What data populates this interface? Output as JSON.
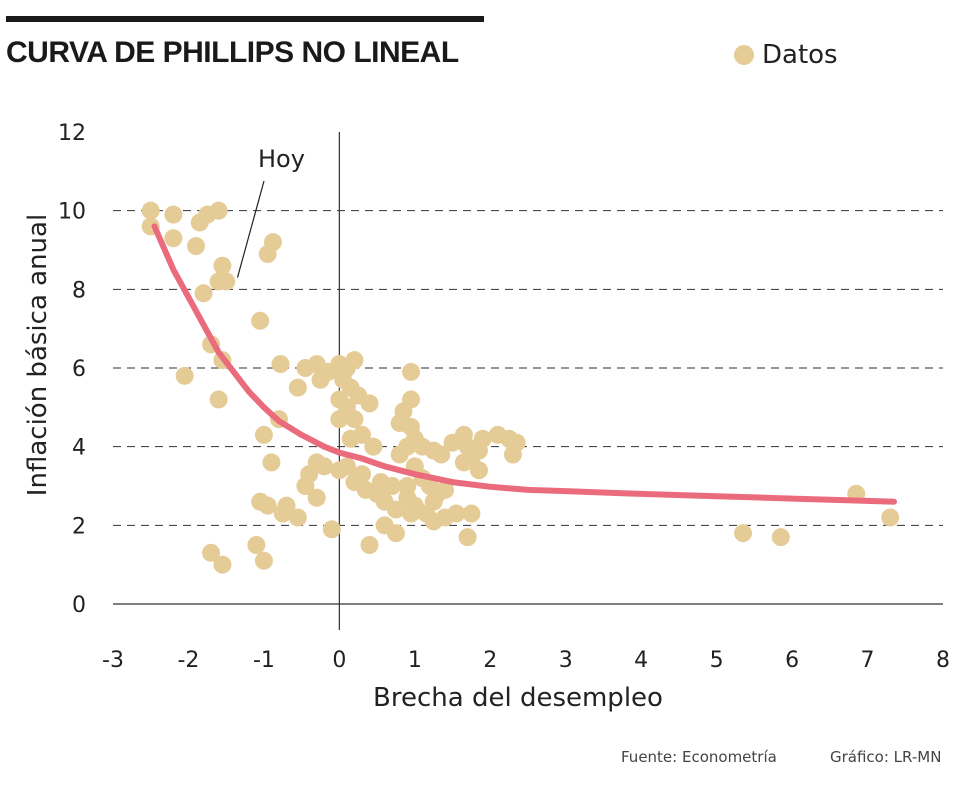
{
  "header": {
    "title": "CURVA DE PHILLIPS NO LINEAL"
  },
  "legend": {
    "label": "Datos"
  },
  "footer": {
    "source": "Fuente: Econometría",
    "credit": "Gráfico: LR-MN"
  },
  "colors": {
    "points": "#e5cc97",
    "curve": "#ea6b7c",
    "grid": "#333333"
  },
  "chart_data": {
    "type": "scatter",
    "xlabel": "Brecha del desempleo",
    "ylabel": "Inflación básica anual",
    "xlim": [
      -3,
      8
    ],
    "ylim": [
      0,
      12
    ],
    "xticks": [
      "-3",
      "-2",
      "-1",
      "0",
      "1",
      "2",
      "3",
      "4",
      "5",
      "6",
      "7",
      "8"
    ],
    "yticks": [
      "0",
      "2",
      "4",
      "6",
      "8",
      "10",
      "12"
    ],
    "grid": "horizontal dashed",
    "legend_position": "top-right",
    "annotation": {
      "text": "Hoy",
      "x": -1.35,
      "y": 8.3
    },
    "series": [
      {
        "name": "Datos",
        "kind": "points",
        "points": [
          [
            -2.5,
            9.6
          ],
          [
            -2.5,
            10.0
          ],
          [
            -2.2,
            9.9
          ],
          [
            -2.2,
            9.3
          ],
          [
            -1.9,
            9.1
          ],
          [
            -1.85,
            9.7
          ],
          [
            -1.75,
            9.9
          ],
          [
            -1.6,
            10.0
          ],
          [
            -1.8,
            7.9
          ],
          [
            -1.55,
            8.6
          ],
          [
            -1.6,
            8.2
          ],
          [
            -1.5,
            8.2
          ],
          [
            -0.95,
            8.9
          ],
          [
            -0.88,
            9.2
          ],
          [
            -1.05,
            7.2
          ],
          [
            -1.7,
            6.6
          ],
          [
            -1.55,
            6.2
          ],
          [
            -2.05,
            5.8
          ],
          [
            -1.6,
            5.2
          ],
          [
            -0.8,
            4.7
          ],
          [
            -0.78,
            6.1
          ],
          [
            -0.55,
            5.5
          ],
          [
            -0.45,
            6.0
          ],
          [
            -0.3,
            6.1
          ],
          [
            -0.25,
            5.7
          ],
          [
            -0.15,
            5.9
          ],
          [
            -1.0,
            4.3
          ],
          [
            -0.9,
            3.6
          ],
          [
            -0.3,
            3.6
          ],
          [
            -0.2,
            3.5
          ],
          [
            -0.4,
            3.3
          ],
          [
            -0.45,
            3.0
          ],
          [
            -0.3,
            2.7
          ],
          [
            -1.05,
            2.6
          ],
          [
            -0.95,
            2.5
          ],
          [
            -0.7,
            2.5
          ],
          [
            -0.75,
            2.3
          ],
          [
            -0.55,
            2.2
          ],
          [
            -0.1,
            1.9
          ],
          [
            -1.1,
            1.5
          ],
          [
            -1.0,
            1.1
          ],
          [
            -1.7,
            1.3
          ],
          [
            -1.55,
            1.0
          ],
          [
            0.0,
            6.1
          ],
          [
            0.1,
            6.0
          ],
          [
            0.2,
            6.2
          ],
          [
            0.05,
            5.7
          ],
          [
            0.15,
            5.5
          ],
          [
            0.25,
            5.3
          ],
          [
            0.0,
            5.2
          ],
          [
            0.1,
            5.0
          ],
          [
            0.4,
            5.1
          ],
          [
            0.0,
            4.7
          ],
          [
            0.2,
            4.7
          ],
          [
            0.3,
            4.3
          ],
          [
            0.15,
            4.2
          ],
          [
            0.45,
            4.0
          ],
          [
            0.0,
            3.4
          ],
          [
            0.1,
            3.5
          ],
          [
            0.3,
            3.3
          ],
          [
            0.2,
            3.1
          ],
          [
            0.35,
            2.9
          ],
          [
            0.5,
            2.8
          ],
          [
            0.55,
            3.1
          ],
          [
            0.7,
            3.0
          ],
          [
            0.6,
            2.6
          ],
          [
            0.75,
            2.4
          ],
          [
            0.6,
            2.0
          ],
          [
            0.75,
            1.8
          ],
          [
            0.4,
            1.5
          ],
          [
            0.95,
            5.9
          ],
          [
            0.95,
            5.2
          ],
          [
            0.85,
            4.9
          ],
          [
            0.8,
            4.6
          ],
          [
            0.95,
            4.5
          ],
          [
            1.0,
            4.2
          ],
          [
            0.9,
            4.0
          ],
          [
            0.8,
            3.8
          ],
          [
            1.1,
            4.0
          ],
          [
            1.25,
            3.9
          ],
          [
            1.35,
            3.8
          ],
          [
            1.5,
            4.1
          ],
          [
            1.65,
            4.3
          ],
          [
            1.7,
            4.0
          ],
          [
            1.75,
            3.7
          ],
          [
            1.65,
            3.6
          ],
          [
            1.85,
            3.9
          ],
          [
            1.85,
            3.4
          ],
          [
            1.9,
            4.2
          ],
          [
            2.1,
            4.3
          ],
          [
            2.25,
            4.2
          ],
          [
            2.35,
            4.1
          ],
          [
            2.3,
            3.8
          ],
          [
            1.0,
            3.5
          ],
          [
            1.1,
            3.2
          ],
          [
            1.2,
            3.0
          ],
          [
            1.3,
            2.8
          ],
          [
            1.4,
            2.9
          ],
          [
            0.9,
            2.7
          ],
          [
            1.0,
            2.5
          ],
          [
            1.15,
            2.3
          ],
          [
            1.25,
            2.1
          ],
          [
            1.4,
            2.2
          ],
          [
            1.55,
            2.3
          ],
          [
            1.75,
            2.3
          ],
          [
            1.7,
            1.7
          ],
          [
            0.95,
            2.3
          ],
          [
            1.25,
            2.6
          ],
          [
            0.9,
            3.0
          ],
          [
            5.35,
            1.8
          ],
          [
            5.85,
            1.7
          ],
          [
            6.85,
            2.8
          ],
          [
            7.3,
            2.2
          ]
        ]
      },
      {
        "name": "",
        "kind": "curve",
        "points": [
          [
            -2.45,
            9.6
          ],
          [
            -2.2,
            8.5
          ],
          [
            -2.0,
            7.8
          ],
          [
            -1.8,
            7.1
          ],
          [
            -1.6,
            6.4
          ],
          [
            -1.4,
            5.9
          ],
          [
            -1.2,
            5.4
          ],
          [
            -1.0,
            5.0
          ],
          [
            -0.8,
            4.65
          ],
          [
            -0.5,
            4.3
          ],
          [
            -0.2,
            4.0
          ],
          [
            0.0,
            3.85
          ],
          [
            0.3,
            3.7
          ],
          [
            0.6,
            3.5
          ],
          [
            1.0,
            3.3
          ],
          [
            1.5,
            3.1
          ],
          [
            2.0,
            2.98
          ],
          [
            2.5,
            2.9
          ],
          [
            3.0,
            2.87
          ],
          [
            4.0,
            2.8
          ],
          [
            5.0,
            2.74
          ],
          [
            6.0,
            2.68
          ],
          [
            7.0,
            2.62
          ],
          [
            7.35,
            2.6
          ]
        ]
      }
    ]
  }
}
